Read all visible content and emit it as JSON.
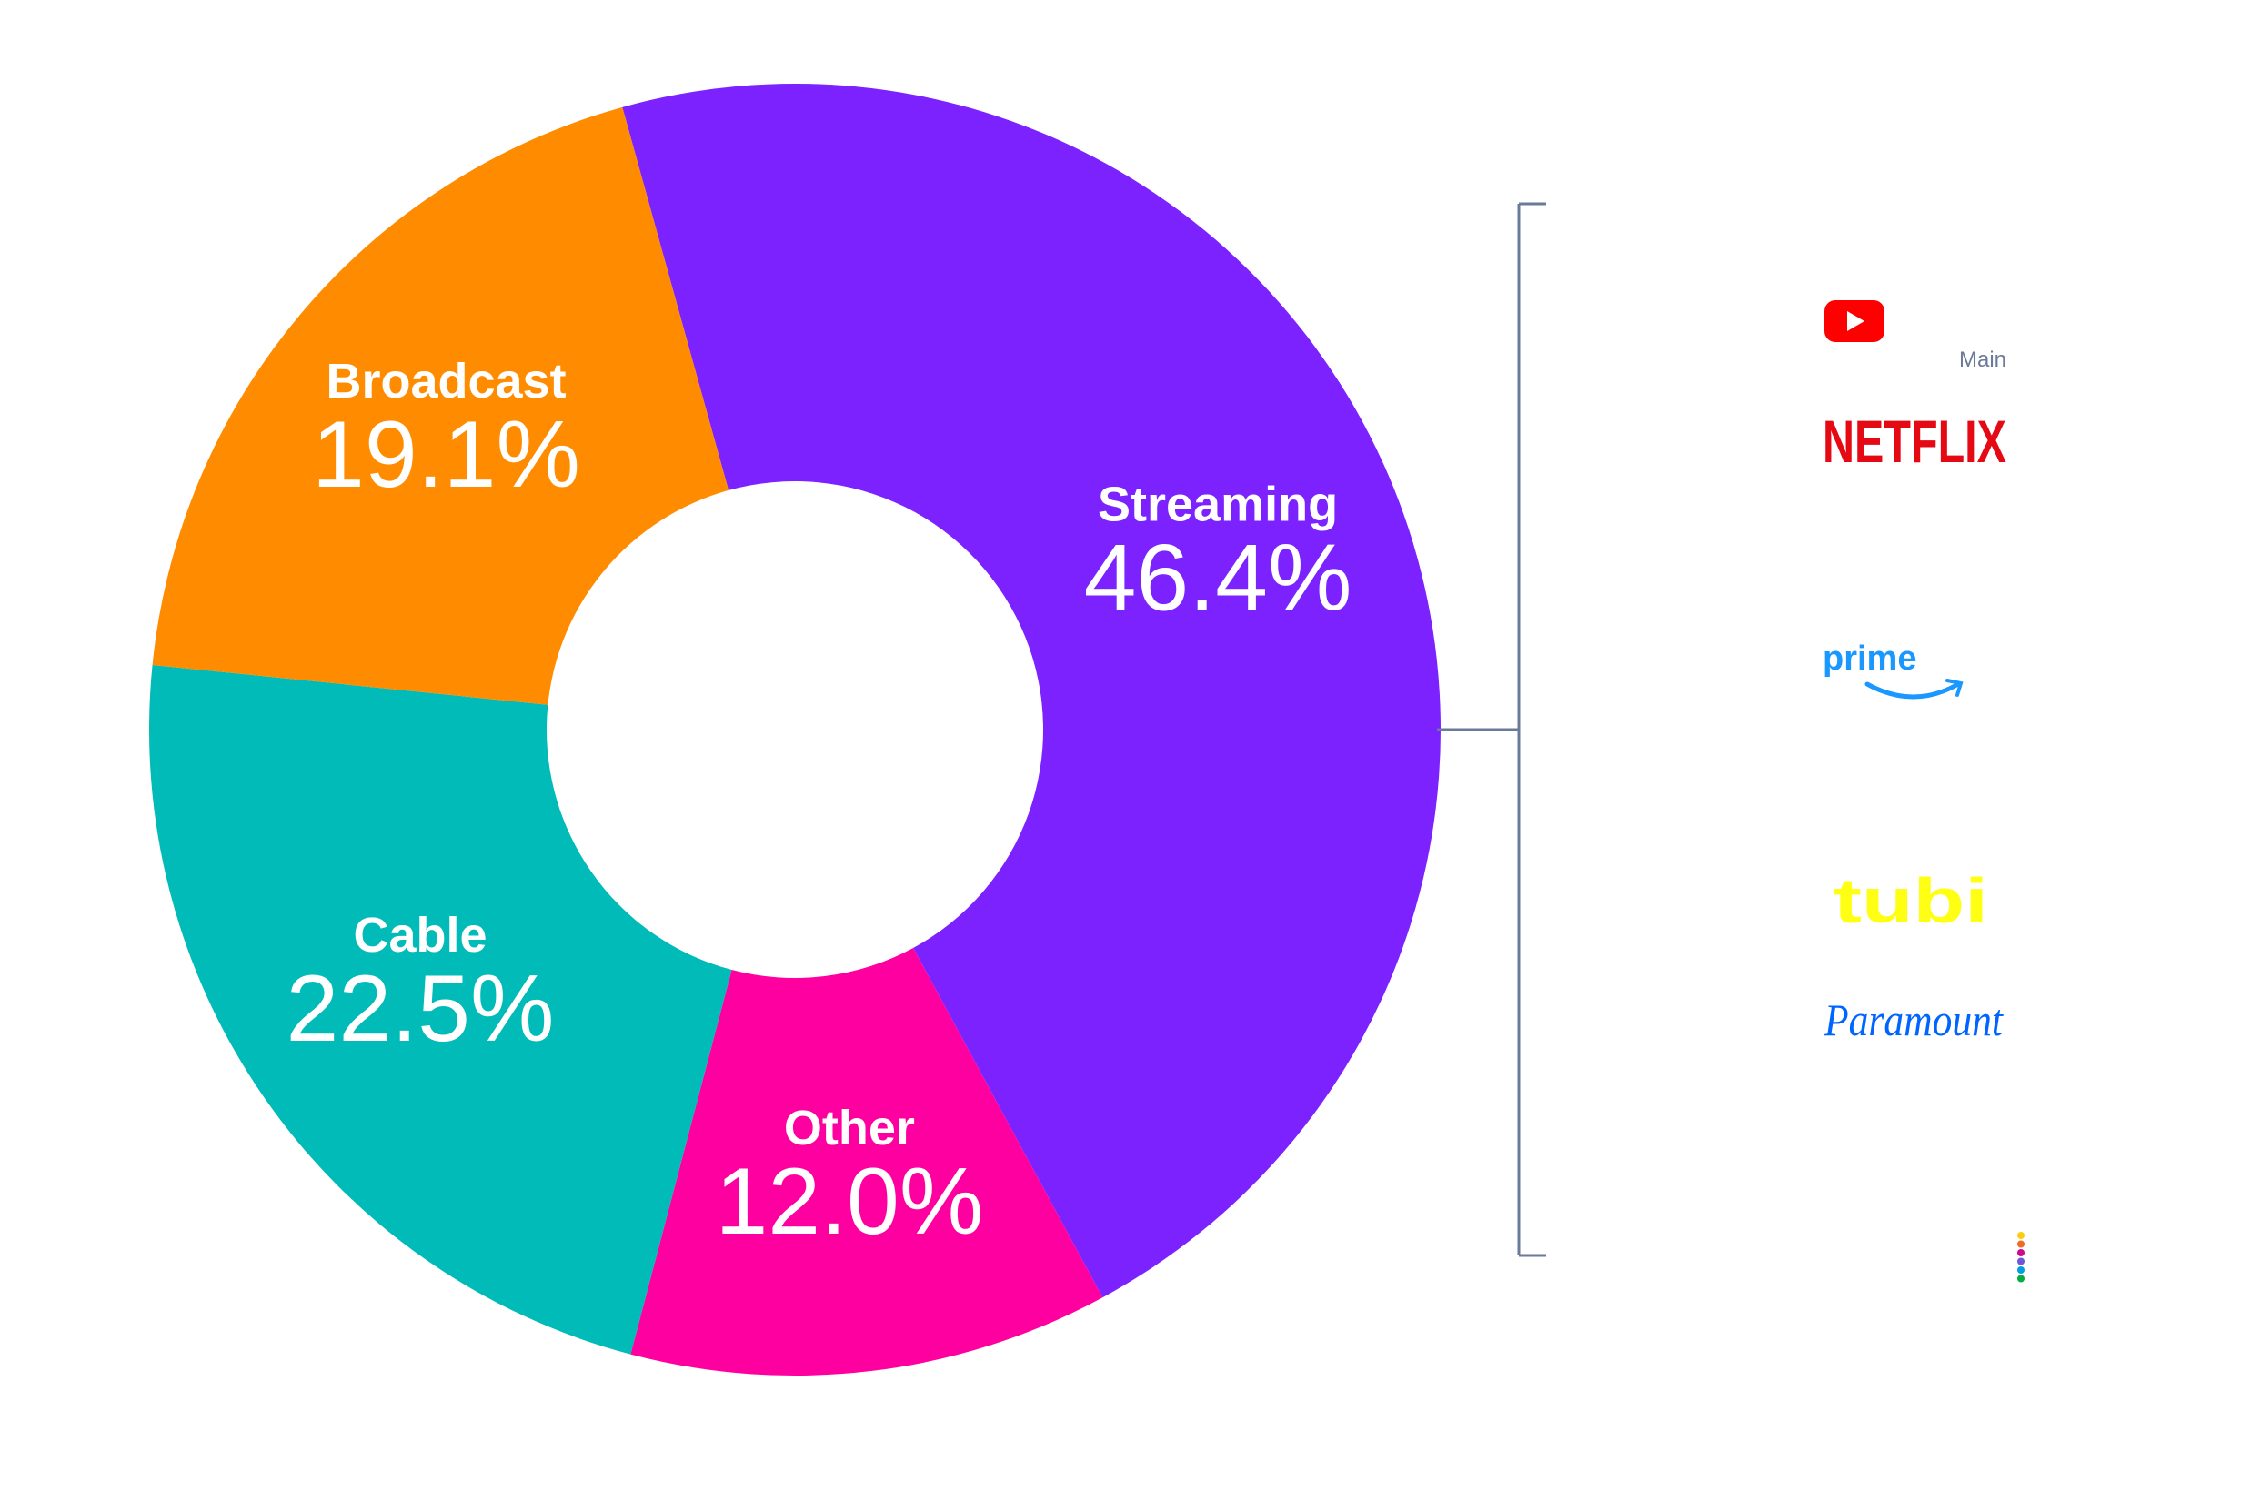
{
  "chart_data": {
    "type": "pie",
    "variant": "donut",
    "title": "",
    "slices": [
      {
        "label": "Streaming",
        "display": "46.4%",
        "value": 46.4,
        "color": "#7B22FF"
      },
      {
        "label": "Other",
        "display": "12.0%",
        "value": 12.0,
        "color": "#FF00A0"
      },
      {
        "label": "Cable",
        "display": "22.5%",
        "value": 22.5,
        "color": "#00BBB8"
      },
      {
        "label": "Broadcast",
        "display": "19.1%",
        "value": 19.1,
        "color": "#FF8C00"
      }
    ],
    "start_angle_deg": -15.5,
    "direction": "clockwise"
  },
  "streaming_breakdown": {
    "bracket_color": "#6b7a99",
    "main_label": "Main",
    "logos": [
      {
        "name": "YouTube",
        "icon": "youtube-icon",
        "color": "#FF0000"
      },
      {
        "name": "NETFLIX",
        "color": "#E50914"
      },
      {
        "name": "prime",
        "color": "#1A98FF"
      },
      {
        "name": "tubi",
        "color": "#FFFF13"
      },
      {
        "name": "Paramount",
        "color": "#0064FF"
      },
      {
        "name": "Peacock",
        "icon": "peacock-dots-icon",
        "colors": [
          "#FCCC12",
          "#EF6A24",
          "#CF0A8B",
          "#6E55DC",
          "#069DE0",
          "#05AC3F"
        ]
      }
    ]
  }
}
